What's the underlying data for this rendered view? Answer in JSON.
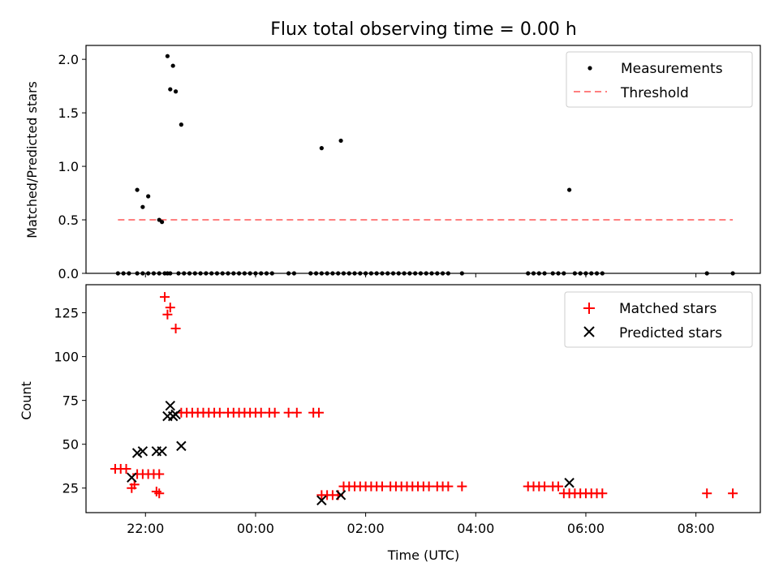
{
  "chart_data": [
    {
      "type": "scatter",
      "title": "Flux total observing time = 0.00 h",
      "ylabel": "Matched/Predicted stars",
      "xlabel": "",
      "ylim": [
        0,
        2.13
      ],
      "yticks": [
        0.0,
        0.5,
        1.0,
        1.5,
        2.0
      ],
      "ytick_labels": [
        "0.0",
        "0.5",
        "1.0",
        "1.5",
        "2.0"
      ],
      "legend": [
        "Measurements",
        "Threshold"
      ],
      "legend_position": "upper right",
      "colors": {
        "measurements": "#000000",
        "threshold": "#ff7f7f"
      },
      "threshold": {
        "y": 0.5,
        "x_start": -2.5,
        "x_end": 8.67
      },
      "series": [
        {
          "name": "Measurements",
          "x": [
            -2.5,
            -2.4,
            -2.3,
            -2.15,
            -2.05,
            -1.95,
            -1.85,
            -1.75,
            -1.65,
            -1.6,
            -1.55,
            -1.4,
            -1.3,
            -1.2,
            -1.1,
            -1.0,
            -0.9,
            -0.8,
            -0.7,
            -0.6,
            -0.5,
            -0.4,
            -0.3,
            -0.2,
            -0.1,
            0.0,
            0.1,
            0.2,
            0.3,
            0.6,
            0.7,
            1.0,
            1.1,
            1.2,
            1.3,
            1.4,
            1.5,
            1.6,
            1.7,
            1.8,
            1.9,
            2.0,
            2.1,
            2.2,
            2.3,
            2.4,
            2.5,
            2.6,
            2.7,
            2.8,
            2.9,
            3.0,
            3.1,
            3.2,
            3.3,
            3.4,
            3.5,
            3.75,
            4.95,
            5.05,
            5.15,
            5.25,
            5.4,
            5.5,
            5.6,
            5.8,
            5.9,
            6.0,
            6.1,
            6.2,
            6.3,
            8.2,
            8.67,
            -2.15,
            -2.05,
            -1.95,
            -1.75,
            -1.7,
            -1.6,
            -1.55,
            -1.5,
            -1.45,
            -1.35,
            1.2,
            1.55,
            5.7
          ],
          "y": [
            0,
            0,
            0,
            0,
            0,
            0,
            0,
            0,
            0,
            0,
            0,
            0,
            0,
            0,
            0,
            0,
            0,
            0,
            0,
            0,
            0,
            0,
            0,
            0,
            0,
            0,
            0,
            0,
            0,
            0,
            0,
            0,
            0,
            0,
            0,
            0,
            0,
            0,
            0,
            0,
            0,
            0,
            0,
            0,
            0,
            0,
            0,
            0,
            0,
            0,
            0,
            0,
            0,
            0,
            0,
            0,
            0,
            0,
            0,
            0,
            0,
            0,
            0,
            0,
            0,
            0,
            0,
            0,
            0,
            0,
            0,
            0,
            0,
            0.78,
            0.62,
            0.72,
            0.5,
            0.48,
            2.03,
            1.72,
            1.94,
            1.7,
            1.39,
            1.17,
            1.24,
            0.78
          ]
        }
      ]
    },
    {
      "type": "scatter",
      "title": "",
      "ylabel": "Count",
      "xlabel": "Time (UTC)",
      "ylim": [
        11,
        141
      ],
      "yticks": [
        25,
        50,
        75,
        100,
        125
      ],
      "ytick_labels": [
        "25",
        "50",
        "75",
        "100",
        "125"
      ],
      "xlim": [
        -3.08,
        9.17
      ],
      "xticks": [
        -2,
        0,
        2,
        4,
        6,
        8
      ],
      "xtick_labels": [
        "22:00",
        "00:00",
        "02:00",
        "04:00",
        "06:00",
        "08:00"
      ],
      "legend": [
        "Matched stars",
        "Predicted stars"
      ],
      "legend_position": "upper right",
      "colors": {
        "matched": "#ff0000",
        "predicted": "#000000"
      },
      "series": [
        {
          "name": "Matched stars",
          "x": [
            -2.55,
            -2.45,
            -2.35,
            -2.25,
            -2.2,
            -2.15,
            -2.05,
            -1.95,
            -1.85,
            -1.75,
            -1.8,
            -1.75,
            -1.65,
            -1.6,
            -1.55,
            -1.45,
            -1.35,
            -1.25,
            -1.15,
            -1.05,
            -0.95,
            -0.85,
            -0.75,
            -0.65,
            -0.5,
            -0.4,
            -0.3,
            -0.2,
            -0.1,
            0.0,
            0.1,
            0.25,
            0.35,
            0.6,
            0.75,
            1.05,
            1.15,
            1.2,
            1.3,
            1.4,
            1.5,
            1.6,
            1.7,
            1.8,
            1.9,
            2.0,
            2.1,
            2.2,
            2.3,
            2.45,
            2.55,
            2.65,
            2.75,
            2.85,
            2.95,
            3.05,
            3.15,
            3.3,
            3.4,
            3.5,
            3.75,
            4.95,
            5.05,
            5.15,
            5.25,
            5.4,
            5.5,
            5.6,
            5.7,
            5.8,
            5.9,
            6.0,
            6.1,
            6.2,
            6.3,
            8.2,
            8.67
          ],
          "y": [
            36,
            36,
            36,
            25,
            27,
            33,
            33,
            33,
            33,
            33,
            23,
            22,
            134,
            124,
            128,
            116,
            68,
            68,
            68,
            68,
            68,
            68,
            68,
            68,
            68,
            68,
            68,
            68,
            68,
            68,
            68,
            68,
            68,
            68,
            68,
            68,
            68,
            21,
            21,
            21,
            21,
            26,
            26,
            26,
            26,
            26,
            26,
            26,
            26,
            26,
            26,
            26,
            26,
            26,
            26,
            26,
            26,
            26,
            26,
            26,
            26,
            26,
            26,
            26,
            26,
            26,
            26,
            22,
            22,
            22,
            22,
            22,
            22,
            22,
            22,
            22,
            22
          ]
        },
        {
          "name": "Predicted stars",
          "x": [
            -2.25,
            -2.15,
            -2.05,
            -1.8,
            -1.7,
            -1.6,
            -1.55,
            -1.5,
            -1.45,
            -1.35,
            1.2,
            1.55,
            5.7
          ],
          "y": [
            31,
            45,
            46,
            46,
            46,
            66,
            72,
            66,
            67,
            49,
            18,
            21,
            28
          ]
        }
      ]
    }
  ]
}
